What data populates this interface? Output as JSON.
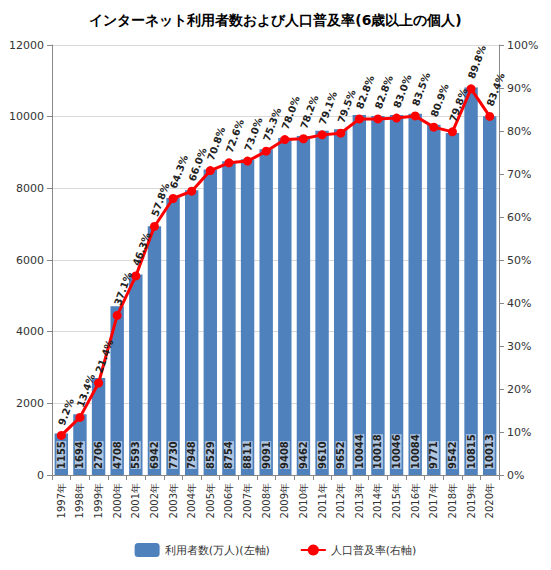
{
  "chart_data": {
    "type": "bar",
    "title": "インターネット利用者数および人口普及率(6歳以上の個人)",
    "categories": [
      "1997年",
      "1998年",
      "1999年",
      "2000年",
      "2001年",
      "2002年",
      "2003年",
      "2004年",
      "2005年",
      "2006年",
      "2007年",
      "2008年",
      "2009年",
      "2010年",
      "2011年",
      "2012年",
      "2013年",
      "2014年",
      "2015年",
      "2016年",
      "2017年",
      "2018年",
      "2019年",
      "2020年"
    ],
    "series": [
      {
        "name": "利用者数(万人)(左軸)",
        "type": "bar",
        "color": "#4f81bd",
        "data_labels": true,
        "values": [
          1155,
          1694,
          2706,
          4708,
          5593,
          6942,
          7730,
          7948,
          8529,
          8754,
          8811,
          9091,
          9408,
          9462,
          9610,
          9652,
          10044,
          10018,
          10046,
          10084,
          9771,
          9542,
          10815,
          10013
        ]
      },
      {
        "name": "人口普及率(右軸)",
        "type": "line",
        "axis": "y2",
        "color": "#ff0000",
        "marker": "circle",
        "data_labels": true,
        "values": [
          9.2,
          13.4,
          21.4,
          37.1,
          46.3,
          57.8,
          64.3,
          66.0,
          70.8,
          72.6,
          73.0,
          75.3,
          78.0,
          78.2,
          79.1,
          79.5,
          82.8,
          82.8,
          83.0,
          83.5,
          80.9,
          79.8,
          89.8,
          83.4
        ],
        "value_labels": [
          "9.2%",
          "13.4%",
          "21.4%",
          "37.1%",
          "46.3%",
          "57.8%",
          "64.3%",
          "66.0%",
          "70.8%",
          "72.6%",
          "73.0%",
          "75.3%",
          "78.0%",
          "78.2%",
          "79.1%",
          "79.5%",
          "82.8%",
          "82.8%",
          "83.0%",
          "83.5%",
          "80.9%",
          "79.8%",
          "89.8%",
          "83.4%"
        ]
      }
    ],
    "ylim": [
      0,
      12000
    ],
    "yticks": [
      0,
      2000,
      4000,
      6000,
      8000,
      10000,
      12000
    ],
    "y2lim": [
      0,
      100
    ],
    "y2ticks": [
      {
        "value": 0,
        "label": "0%"
      },
      {
        "value": 10,
        "label": "10%"
      },
      {
        "value": 20,
        "label": "20%"
      },
      {
        "value": 30,
        "label": "30%"
      },
      {
        "value": 40,
        "label": "40%"
      },
      {
        "value": 50,
        "label": "50%"
      },
      {
        "value": 60,
        "label": "60%"
      },
      {
        "value": 70,
        "label": "70%"
      },
      {
        "value": 80,
        "label": "80%"
      },
      {
        "value": 90,
        "label": "90%"
      },
      {
        "value": 100,
        "label": "100%"
      }
    ],
    "grid": true,
    "legend": "bottom"
  }
}
